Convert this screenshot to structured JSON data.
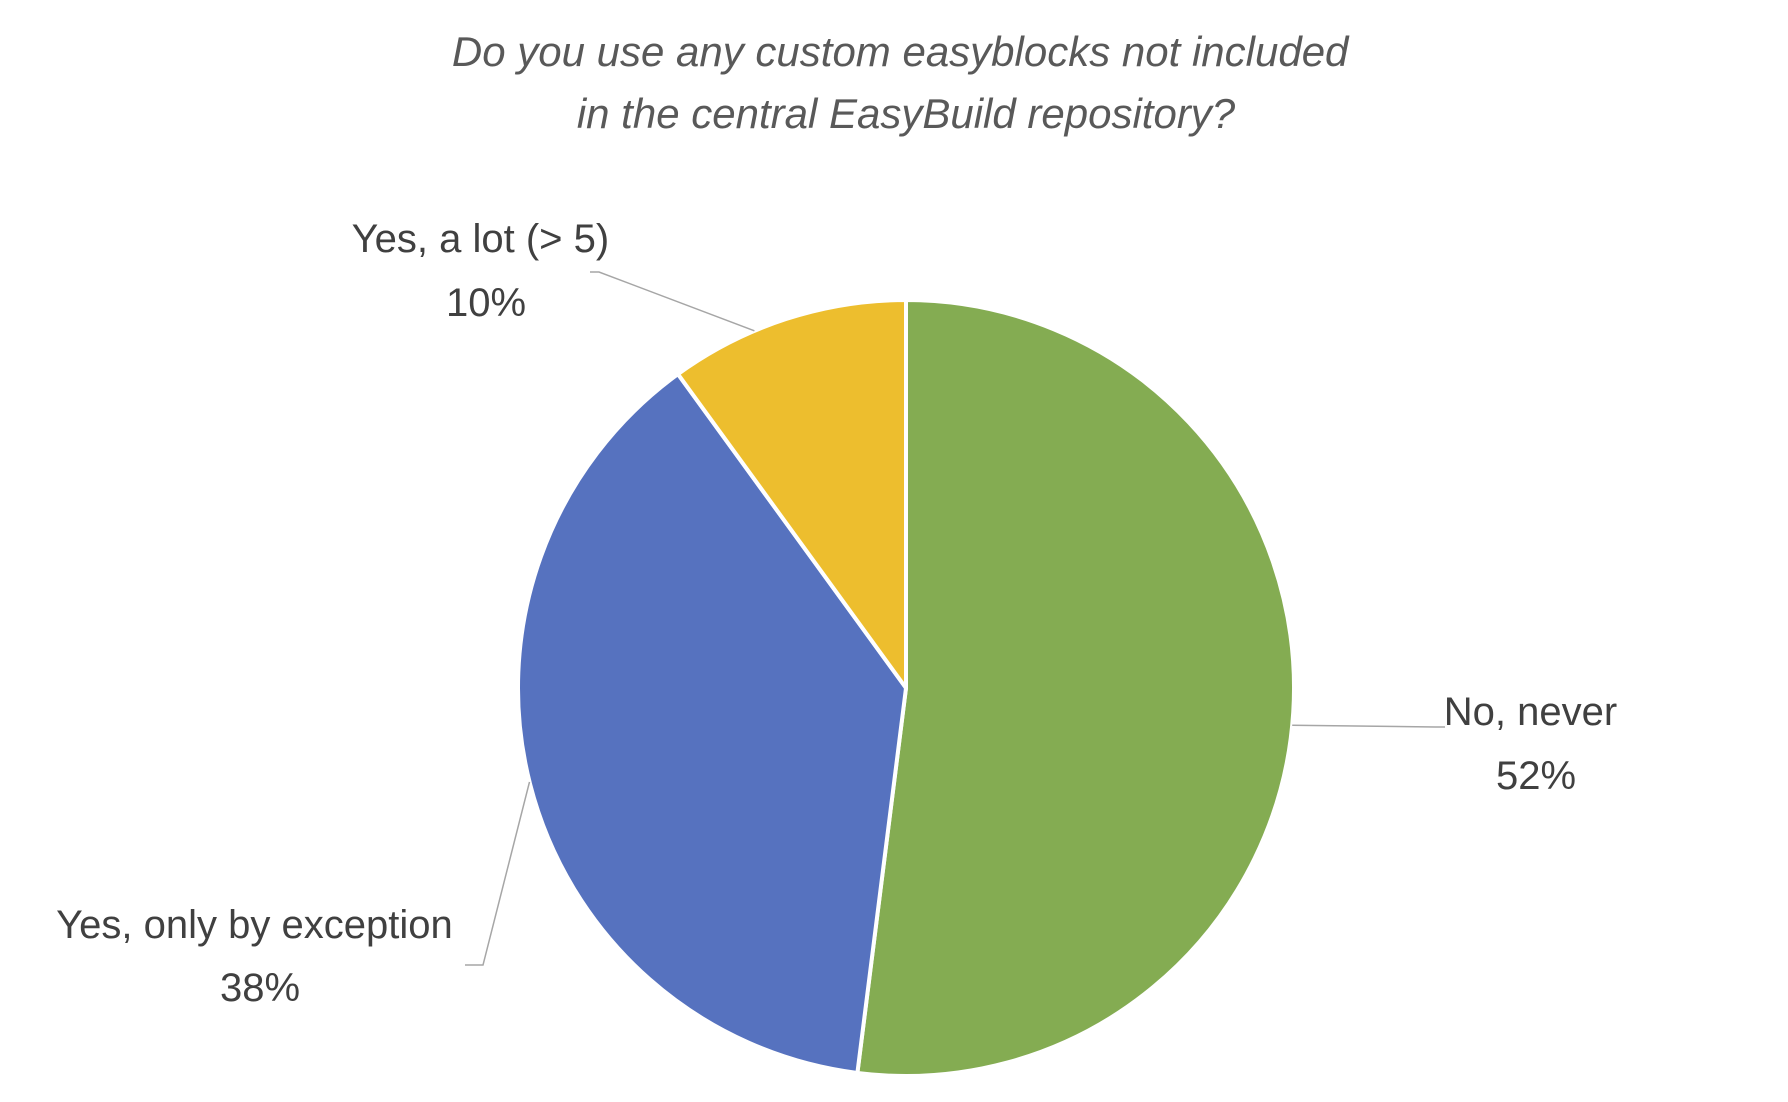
{
  "chart_data": {
    "type": "pie",
    "title": "Do you use any custom easyblocks not included in the central EasyBuild repository?",
    "title_lines": [
      "Do you use any custom easyblocks not included",
      "in the central EasyBuild repository?"
    ],
    "start_angle_deg": 0,
    "direction": "clockwise",
    "slices": [
      {
        "label": "No, never",
        "value": 52,
        "value_label": "52%",
        "color": "#84AC52"
      },
      {
        "label": "Yes, only by exception",
        "value": 38,
        "value_label": "38%",
        "color": "#5672BF"
      },
      {
        "label": "Yes, a lot (> 5)",
        "value": 10,
        "value_label": "10%",
        "color": "#EDBE2E"
      }
    ],
    "legend": "none",
    "data_labels": "outside with leader lines"
  }
}
